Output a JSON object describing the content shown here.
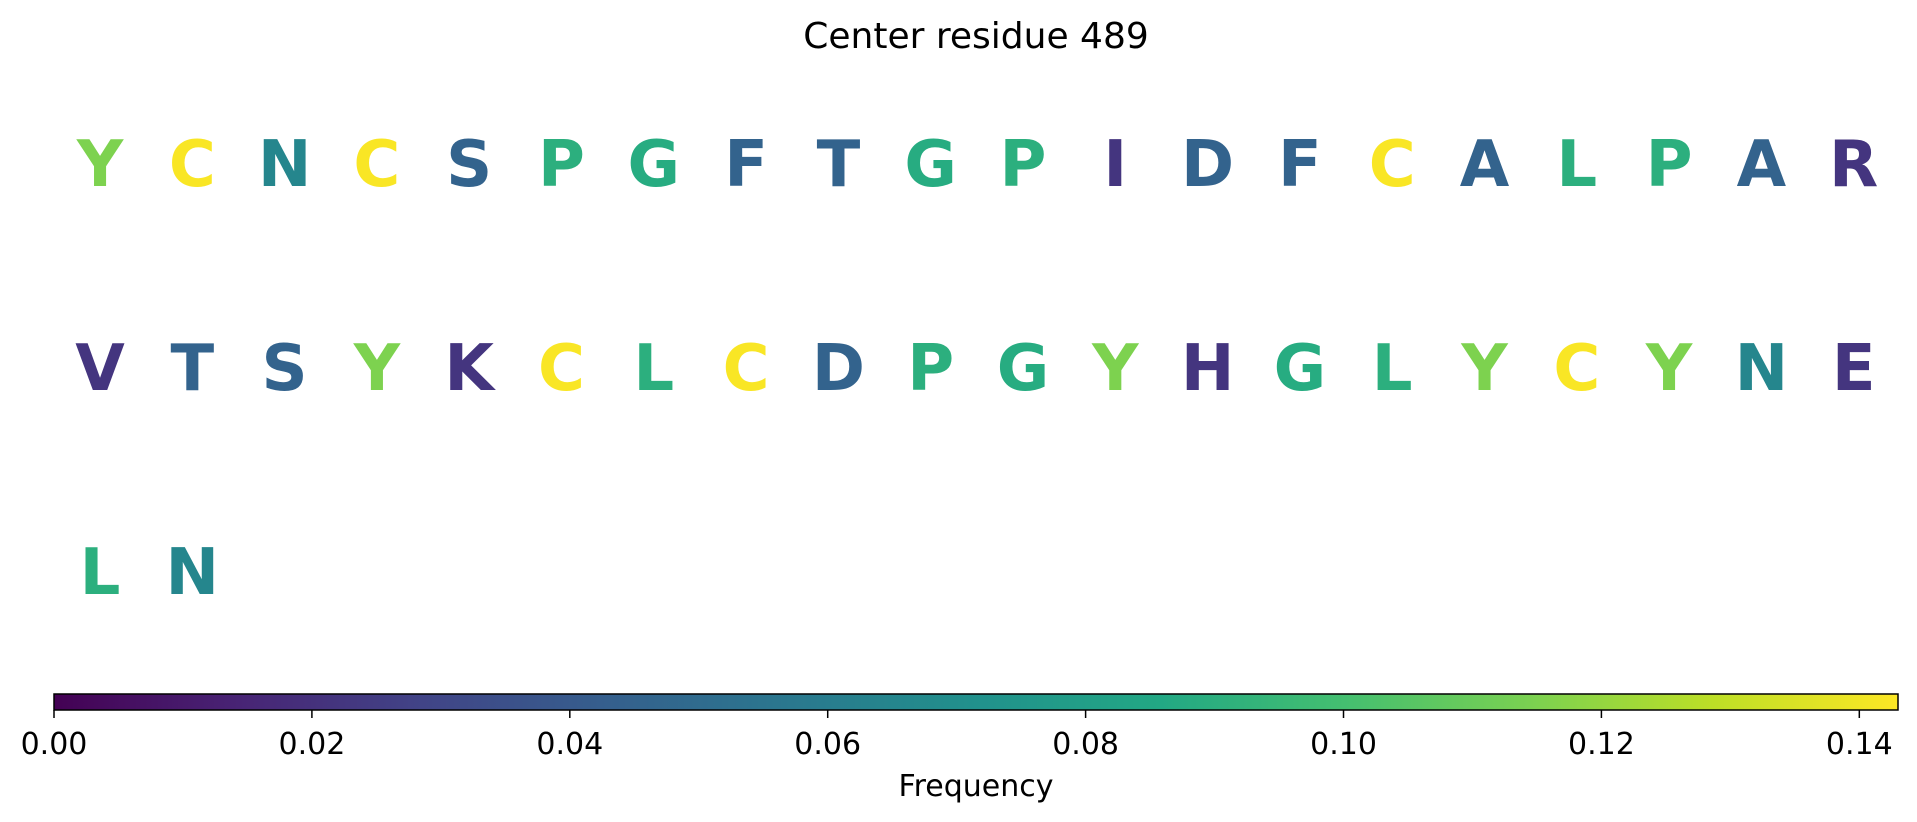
{
  "chart_data": {
    "type": "table",
    "title": "Center residue 489",
    "residues": [
      {
        "letter": "Y",
        "frequency": 0.115
      },
      {
        "letter": "C",
        "frequency": 0.142
      },
      {
        "letter": "N",
        "frequency": 0.065
      },
      {
        "letter": "C",
        "frequency": 0.142
      },
      {
        "letter": "S",
        "frequency": 0.045
      },
      {
        "letter": "P",
        "frequency": 0.09
      },
      {
        "letter": "G",
        "frequency": 0.088
      },
      {
        "letter": "F",
        "frequency": 0.045
      },
      {
        "letter": "T",
        "frequency": 0.045
      },
      {
        "letter": "G",
        "frequency": 0.088
      },
      {
        "letter": "P",
        "frequency": 0.09
      },
      {
        "letter": "I",
        "frequency": 0.022
      },
      {
        "letter": "D",
        "frequency": 0.045
      },
      {
        "letter": "F",
        "frequency": 0.045
      },
      {
        "letter": "C",
        "frequency": 0.142
      },
      {
        "letter": "A",
        "frequency": 0.045
      },
      {
        "letter": "L",
        "frequency": 0.09
      },
      {
        "letter": "P",
        "frequency": 0.09
      },
      {
        "letter": "A",
        "frequency": 0.045
      },
      {
        "letter": "R",
        "frequency": 0.022
      },
      {
        "letter": "V",
        "frequency": 0.022
      },
      {
        "letter": "T",
        "frequency": 0.045
      },
      {
        "letter": "S",
        "frequency": 0.045
      },
      {
        "letter": "Y",
        "frequency": 0.115
      },
      {
        "letter": "K",
        "frequency": 0.022
      },
      {
        "letter": "C",
        "frequency": 0.142
      },
      {
        "letter": "L",
        "frequency": 0.09
      },
      {
        "letter": "C",
        "frequency": 0.142
      },
      {
        "letter": "D",
        "frequency": 0.045
      },
      {
        "letter": "P",
        "frequency": 0.09
      },
      {
        "letter": "G",
        "frequency": 0.088
      },
      {
        "letter": "Y",
        "frequency": 0.115
      },
      {
        "letter": "H",
        "frequency": 0.022
      },
      {
        "letter": "G",
        "frequency": 0.088
      },
      {
        "letter": "L",
        "frequency": 0.09
      },
      {
        "letter": "Y",
        "frequency": 0.115
      },
      {
        "letter": "C",
        "frequency": 0.142
      },
      {
        "letter": "Y",
        "frequency": 0.115
      },
      {
        "letter": "N",
        "frequency": 0.065
      },
      {
        "letter": "E",
        "frequency": 0.022
      },
      {
        "letter": "L",
        "frequency": 0.09
      },
      {
        "letter": "N",
        "frequency": 0.065
      }
    ],
    "letters_per_row": 20,
    "colorbar": {
      "label": "Frequency",
      "colormap": "viridis",
      "range": [
        0,
        0.143
      ],
      "ticks": [
        0.0,
        0.02,
        0.04,
        0.06,
        0.08,
        0.1,
        0.12,
        0.14
      ],
      "tick_labels": [
        "0.00",
        "0.02",
        "0.04",
        "0.06",
        "0.08",
        "0.10",
        "0.12",
        "0.14"
      ]
    },
    "legend": "none",
    "grid": false
  }
}
